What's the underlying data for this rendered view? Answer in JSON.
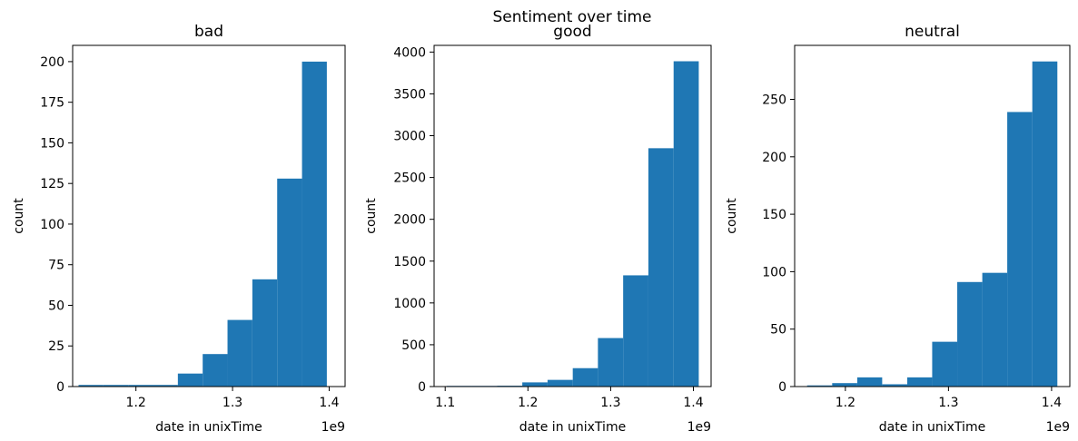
{
  "figure": {
    "suptitle": "Sentiment over time",
    "bar_color": "#1f77b4"
  },
  "chart_data": [
    {
      "type": "histogram",
      "title": "bad",
      "xlabel": "date in unixTime",
      "ylabel": "count",
      "x_offset_text": "1e9",
      "xlim": [
        1.1345,
        1.4165
      ],
      "ylim": [
        0,
        210
      ],
      "xticks": [
        1.2,
        1.3,
        1.4
      ],
      "xtick_labels": [
        "1.2",
        "1.3",
        "1.4"
      ],
      "yticks": [
        0,
        25,
        50,
        75,
        100,
        125,
        150,
        175,
        200
      ],
      "ytick_labels": [
        "0",
        "25",
        "50",
        "75",
        "100",
        "125",
        "150",
        "175",
        "200"
      ],
      "bin_edges": [
        1.1406,
        1.1663,
        1.192,
        1.2177,
        1.2434,
        1.2691,
        1.2948,
        1.3205,
        1.3462,
        1.3719,
        1.3976
      ],
      "values": [
        1,
        1,
        1,
        1,
        8,
        20,
        41,
        66,
        128,
        200
      ]
    },
    {
      "type": "histogram",
      "title": "good",
      "xlabel": "date in unixTime",
      "ylabel": "count",
      "x_offset_text": "1e9",
      "xlim": [
        1.0866,
        1.4214
      ],
      "ylim": [
        0,
        4080
      ],
      "xticks": [
        1.1,
        1.2,
        1.3,
        1.4
      ],
      "xtick_labels": [
        "1.1",
        "1.2",
        "1.3",
        "1.4"
      ],
      "yticks": [
        0,
        500,
        1000,
        1500,
        2000,
        2500,
        3000,
        3500,
        4000
      ],
      "ytick_labels": [
        "0",
        "500",
        "1000",
        "1500",
        "2000",
        "2500",
        "3000",
        "3500",
        "4000"
      ],
      "bin_edges": [
        1.1018,
        1.1323,
        1.1628,
        1.1932,
        1.2237,
        1.2542,
        1.2846,
        1.3151,
        1.3456,
        1.3761,
        1.4065
      ],
      "values": [
        8,
        8,
        10,
        50,
        80,
        220,
        580,
        1330,
        2850,
        3890
      ]
    },
    {
      "type": "histogram",
      "title": "neutral",
      "xlabel": "date in unixTime",
      "ylabel": "count",
      "x_offset_text": "1e9",
      "xlim": [
        1.1508,
        1.4177
      ],
      "ylim": [
        0,
        297
      ],
      "xticks": [
        1.2,
        1.3,
        1.4
      ],
      "xtick_labels": [
        "1.2",
        "1.3",
        "1.4"
      ],
      "yticks": [
        0,
        50,
        100,
        150,
        200,
        250
      ],
      "ytick_labels": [
        "0",
        "50",
        "100",
        "150",
        "200",
        "250"
      ],
      "bin_edges": [
        1.1629,
        1.1872,
        1.2115,
        1.2357,
        1.26,
        1.2842,
        1.3085,
        1.3328,
        1.357,
        1.3813,
        1.4056
      ],
      "values": [
        1,
        3,
        8,
        2,
        8,
        39,
        91,
        99,
        239,
        283
      ]
    }
  ]
}
